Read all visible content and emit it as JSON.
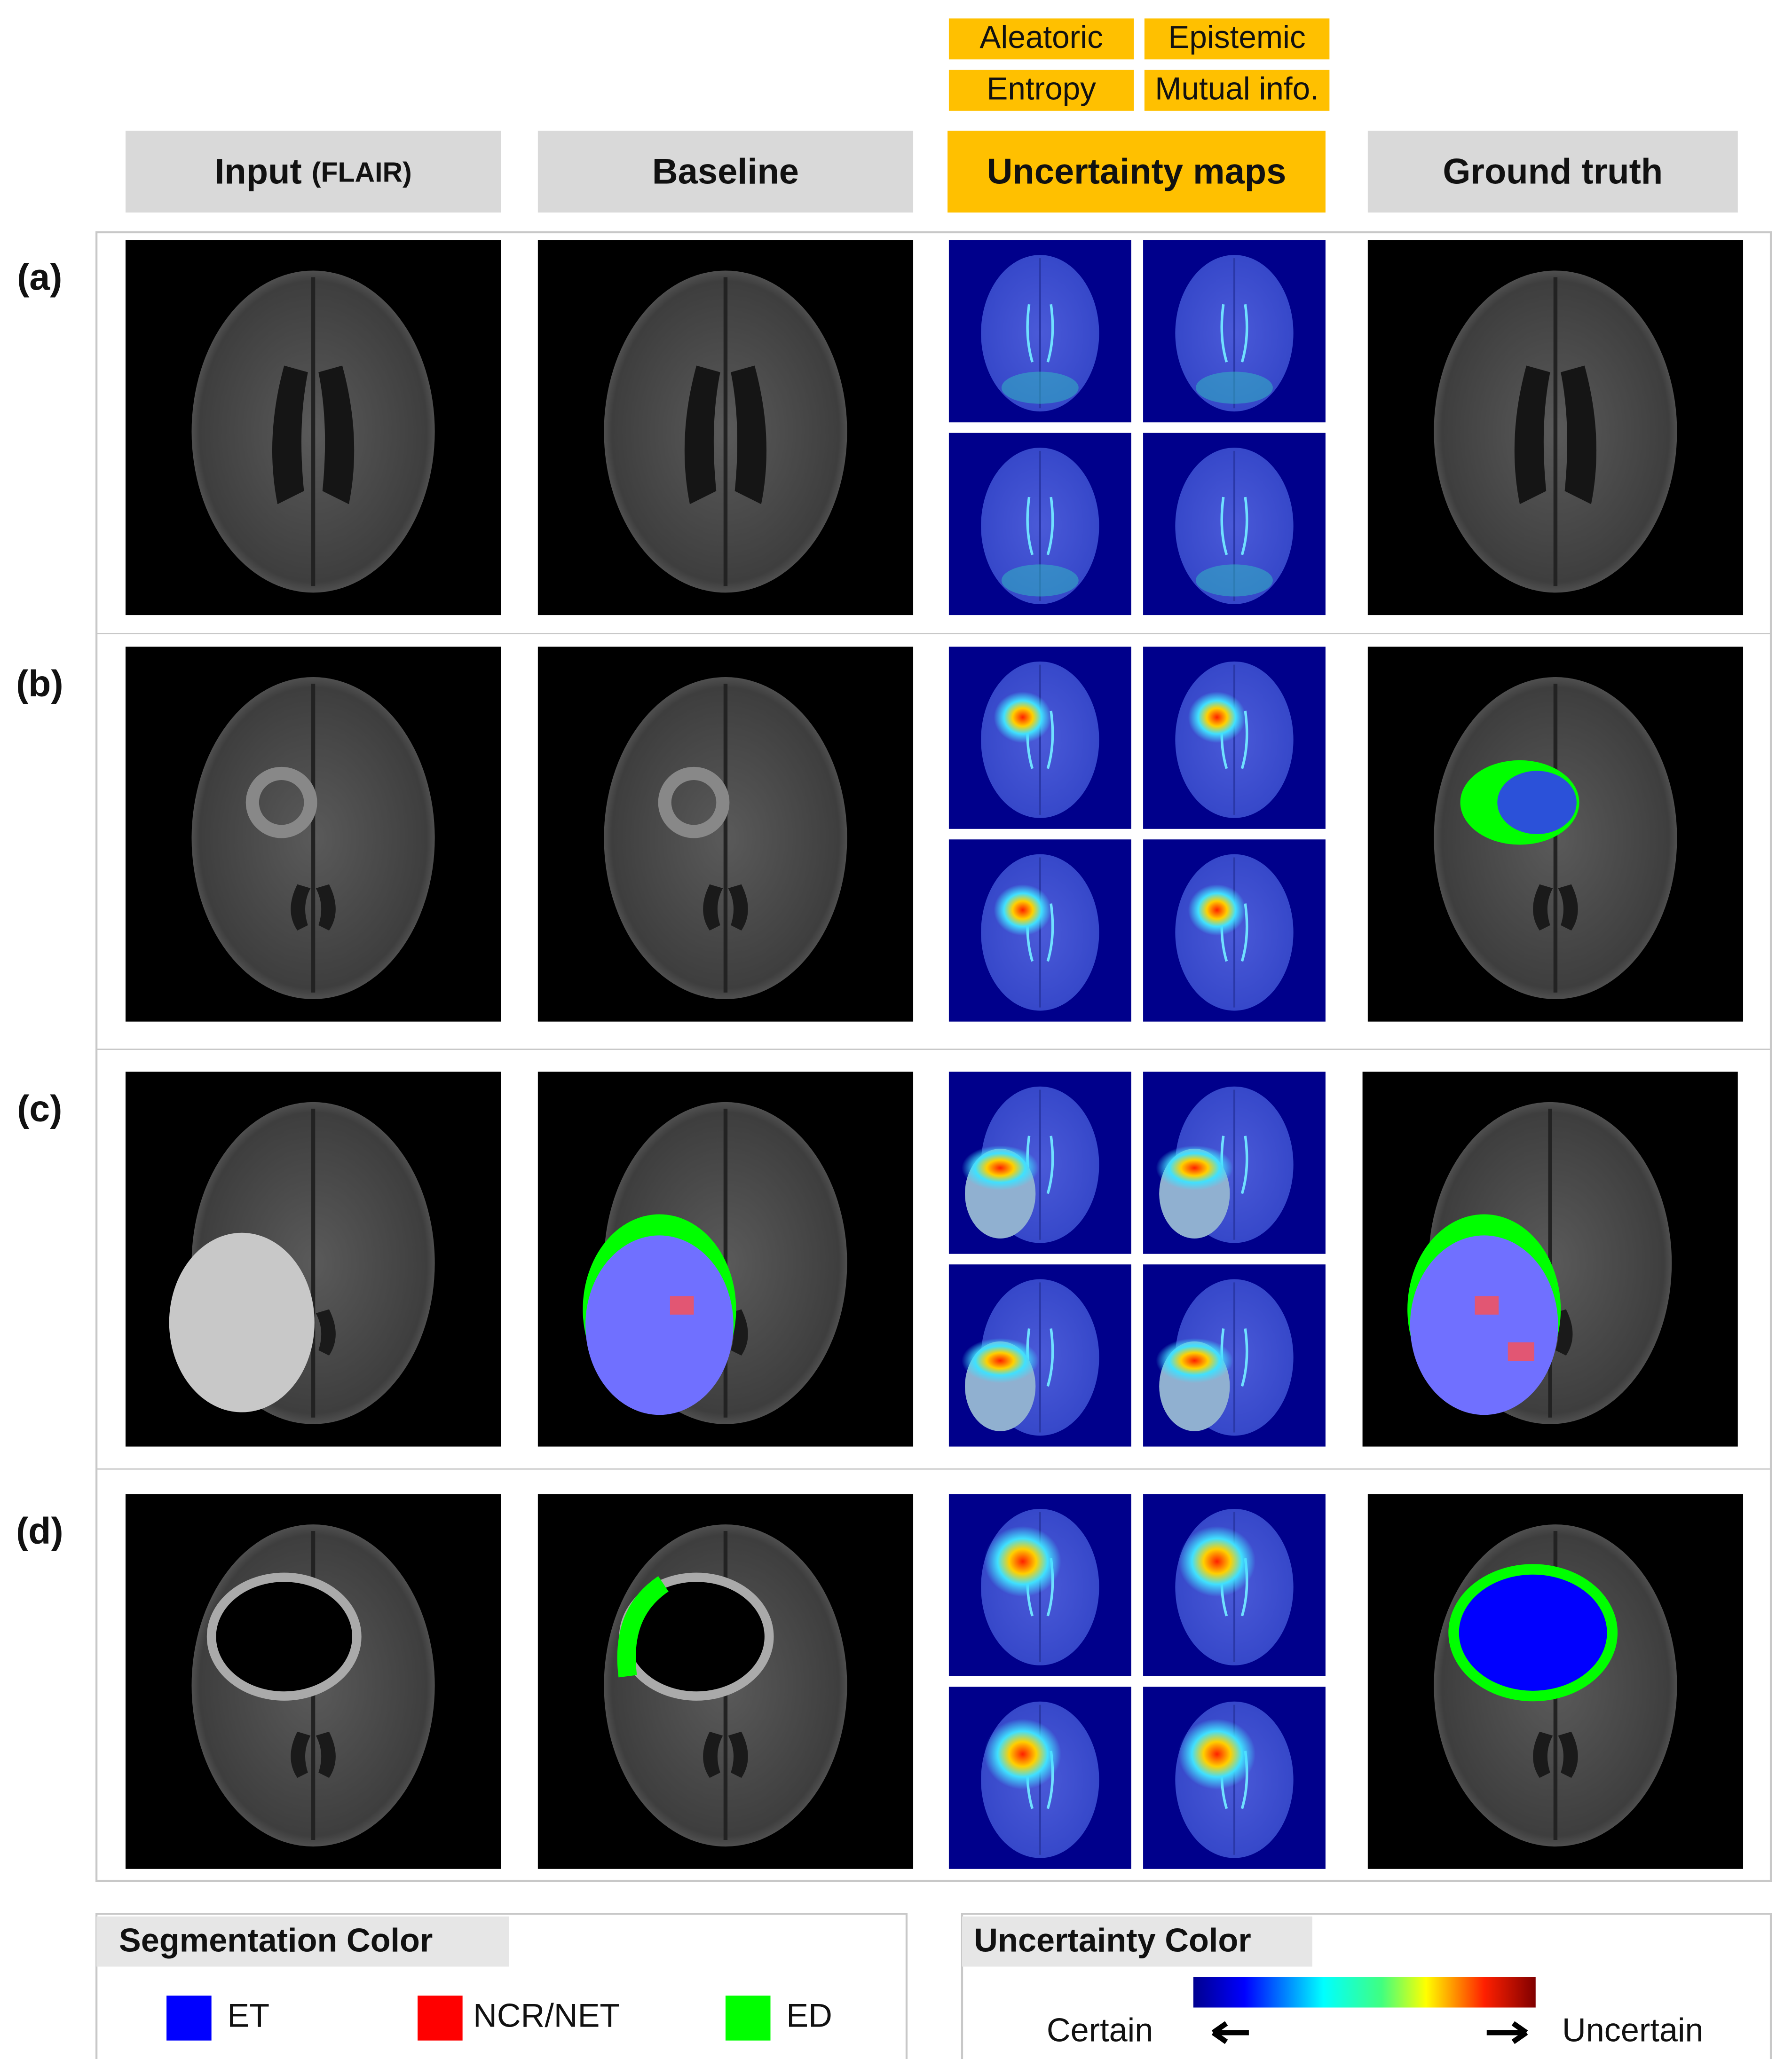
{
  "uncertainty_labels": [
    "Aleatoric",
    "Epistemic",
    "Entropy",
    "Mutual info."
  ],
  "columns": [
    {
      "title": "Input",
      "note": "(FLAIR)"
    },
    {
      "title": "Baseline"
    },
    {
      "title": "Uncertainty maps"
    },
    {
      "title": "Ground truth"
    }
  ],
  "rows": [
    "(a)",
    "(b)",
    "(c)",
    "(d)"
  ],
  "segmentation_legend": {
    "title": "Segmentation Color",
    "items": [
      {
        "label": "ET",
        "color": "#0000ff"
      },
      {
        "label": "NCR/NET",
        "color": "#ff0000"
      },
      {
        "label": "ED",
        "color": "#00ff00"
      }
    ]
  },
  "uncertainty_legend": {
    "title": "Uncertainty Color",
    "low": "Certain",
    "high": "Uncertain"
  }
}
